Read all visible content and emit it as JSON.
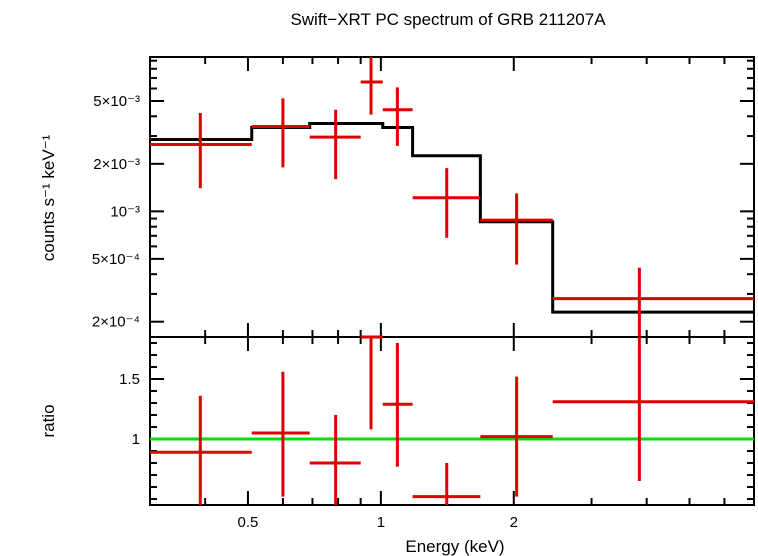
{
  "chart_data": {
    "type": "scatter",
    "title": "Swift−XRT PC spectrum of GRB 211207A",
    "xlabel": "Energy (keV)",
    "xscale": "log",
    "xlim": [
      0.3,
      7.0
    ],
    "xticks": [
      {
        "value": 0.5,
        "label": "0.5"
      },
      {
        "value": 1,
        "label": "1"
      },
      {
        "value": 2,
        "label": "2"
      }
    ],
    "panels": [
      {
        "id": "spectrum",
        "ylabel": "counts s⁻¹ keV⁻¹",
        "yscale": "log",
        "ylim": [
          0.00016,
          0.0095
        ],
        "yticks": [
          {
            "value": 0.0002,
            "label": "2×10⁻⁴"
          },
          {
            "value": 0.0005,
            "label": "5×10⁻⁴"
          },
          {
            "value": 0.001,
            "label": "10⁻³"
          },
          {
            "value": 0.002,
            "label": "2×10⁻³"
          },
          {
            "value": 0.005,
            "label": "5×10⁻³"
          }
        ],
        "data": [
          {
            "xlo": 0.3,
            "xhi": 0.51,
            "x": 0.39,
            "y": 0.00265,
            "ylo": 0.0014,
            "yhi": 0.0042
          },
          {
            "xlo": 0.51,
            "xhi": 0.69,
            "x": 0.6,
            "y": 0.00345,
            "ylo": 0.0019,
            "yhi": 0.0052
          },
          {
            "xlo": 0.69,
            "xhi": 0.9,
            "x": 0.79,
            "y": 0.00295,
            "ylo": 0.0016,
            "yhi": 0.0044
          },
          {
            "xlo": 0.9,
            "xhi": 1.01,
            "x": 0.95,
            "y": 0.0066,
            "ylo": 0.0041,
            "yhi": 0.0095
          },
          {
            "xlo": 1.01,
            "xhi": 1.18,
            "x": 1.09,
            "y": 0.0044,
            "ylo": 0.0026,
            "yhi": 0.0061
          },
          {
            "xlo": 1.18,
            "xhi": 1.68,
            "x": 1.41,
            "y": 0.00122,
            "ylo": 0.00068,
            "yhi": 0.00188
          },
          {
            "xlo": 1.68,
            "xhi": 2.45,
            "x": 2.03,
            "y": 0.00088,
            "ylo": 0.00046,
            "yhi": 0.0013
          },
          {
            "xlo": 2.45,
            "xhi": 7.0,
            "x": 3.85,
            "y": 0.00028,
            "ylo": 0.00016,
            "yhi": 0.00044
          }
        ],
        "model": [
          {
            "xlo": 0.3,
            "xhi": 0.51,
            "y": 0.00285
          },
          {
            "xlo": 0.51,
            "xhi": 0.69,
            "y": 0.0034
          },
          {
            "xlo": 0.69,
            "xhi": 1.01,
            "y": 0.0036
          },
          {
            "xlo": 1.01,
            "xhi": 1.18,
            "y": 0.0034
          },
          {
            "xlo": 1.18,
            "xhi": 1.68,
            "y": 0.00225
          },
          {
            "xlo": 1.68,
            "xhi": 2.45,
            "y": 0.00086
          },
          {
            "xlo": 2.45,
            "xhi": 7.0,
            "y": 0.00023
          }
        ]
      },
      {
        "id": "ratio",
        "ylabel": "ratio",
        "yscale": "linear",
        "ylim": [
          0.45,
          1.85
        ],
        "yticks": [
          {
            "value": 1,
            "label": "1"
          },
          {
            "value": 1.5,
            "label": "1.5"
          }
        ],
        "reference_line": 1,
        "data": [
          {
            "xlo": 0.3,
            "xhi": 0.51,
            "x": 0.39,
            "y": 0.89,
            "ylo": 0.45,
            "yhi": 1.36
          },
          {
            "xlo": 0.51,
            "xhi": 0.69,
            "x": 0.6,
            "y": 1.05,
            "ylo": 0.52,
            "yhi": 1.56
          },
          {
            "xlo": 0.69,
            "xhi": 0.9,
            "x": 0.79,
            "y": 0.8,
            "ylo": 0.45,
            "yhi": 1.2
          },
          {
            "xlo": 0.9,
            "xhi": 1.01,
            "x": 0.95,
            "y": 1.85,
            "ylo": 1.08,
            "yhi": 1.85
          },
          {
            "xlo": 1.01,
            "xhi": 1.18,
            "x": 1.09,
            "y": 1.29,
            "ylo": 0.77,
            "yhi": 1.8
          },
          {
            "xlo": 1.18,
            "xhi": 1.68,
            "x": 1.41,
            "y": 0.52,
            "ylo": 0.45,
            "yhi": 0.8
          },
          {
            "xlo": 1.68,
            "xhi": 2.45,
            "x": 2.03,
            "y": 1.02,
            "ylo": 0.52,
            "yhi": 1.52
          },
          {
            "xlo": 2.45,
            "xhi": 7.0,
            "x": 3.85,
            "y": 1.31,
            "ylo": 0.65,
            "yhi": 1.85
          }
        ]
      }
    ],
    "colors": {
      "data": "#e00000",
      "model": "#000000",
      "reference": "#00e000"
    }
  }
}
